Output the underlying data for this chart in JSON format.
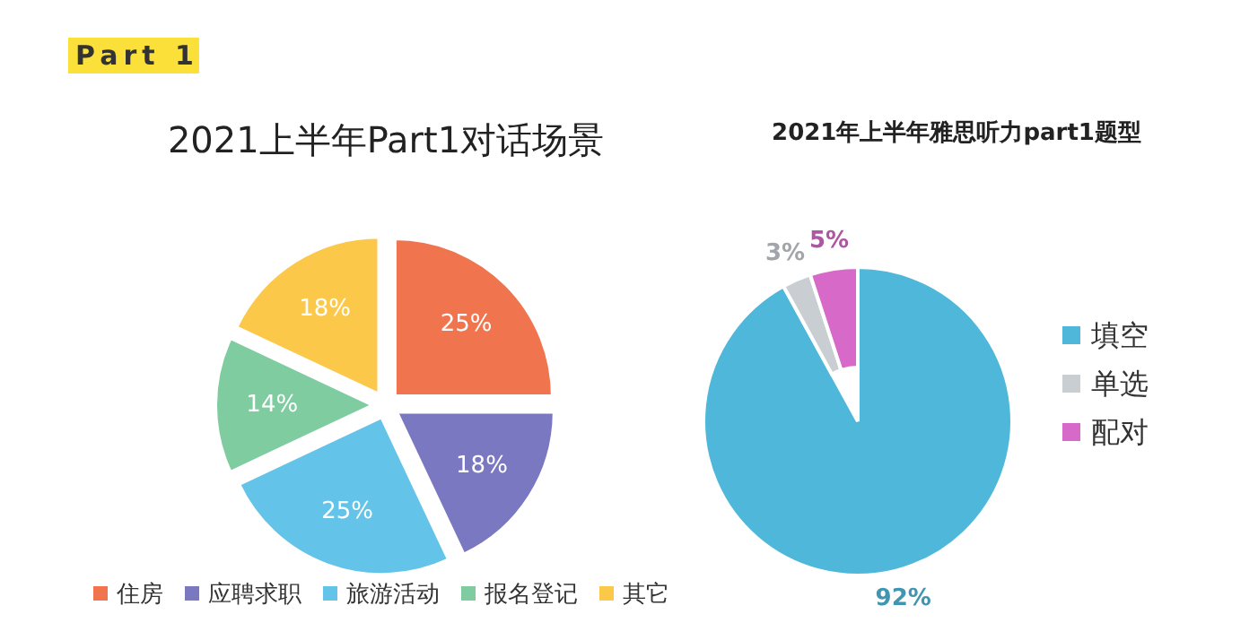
{
  "chart_data": [
    {
      "type": "pie",
      "title": "2021上半年Part1对话场景",
      "annotations": [
        "Part 1"
      ],
      "categories": [
        "住房",
        "应聘求职",
        "旅游活动",
        "报名登记",
        "其它"
      ],
      "values": [
        25,
        18,
        25,
        14,
        18
      ],
      "colors": [
        "#f0744e",
        "#7b78c2",
        "#63c3e8",
        "#7fcca0",
        "#fcc84a"
      ],
      "value_labels": [
        "25%",
        "18%",
        "25%",
        "14%",
        "18%"
      ],
      "legend": "bottom"
    },
    {
      "type": "pie",
      "title": "2021年上半年雅思听力part1题型",
      "categories": [
        "填空",
        "单选",
        "配对"
      ],
      "values": [
        92,
        3,
        5
      ],
      "colors": [
        "#4fb8da",
        "#c9ced2",
        "#d76ac8"
      ],
      "value_labels": [
        "92%",
        "3%",
        "5%"
      ],
      "legend": "right"
    }
  ]
}
